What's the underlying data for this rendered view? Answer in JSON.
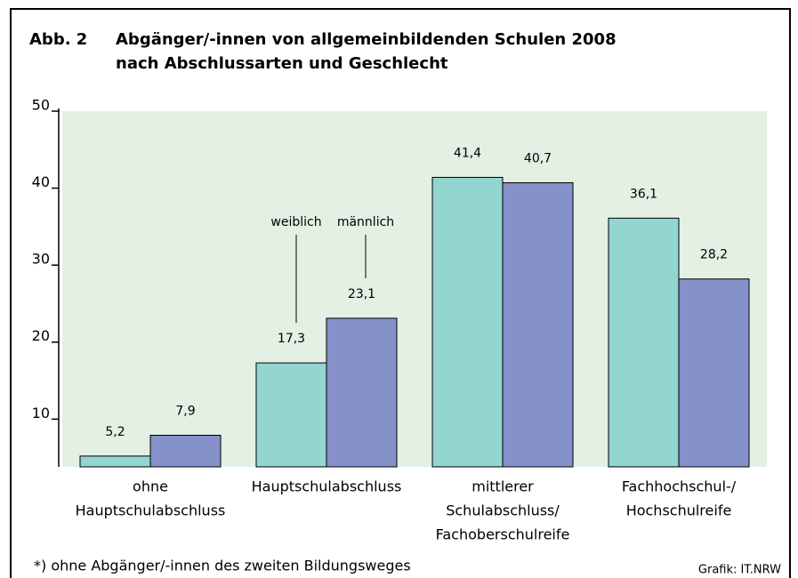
{
  "chart_data": {
    "type": "bar",
    "figure_label": "Abb. 2",
    "title": [
      "Abgänger/-innen von allgemeinbildenden Schulen 2008",
      "nach Abschlussarten und Geschlecht"
    ],
    "categories": [
      [
        "ohne",
        "Hauptschulabschluss"
      ],
      [
        "Hauptschulabschluss"
      ],
      [
        "mittlerer",
        "Schulabschluss/",
        "Fachoberschulreife"
      ],
      [
        "Fachhochschul-/",
        "Hochschulreife"
      ]
    ],
    "series": [
      {
        "name": "weiblich",
        "color": "#93d5cf",
        "values": [
          5.2,
          17.3,
          41.4,
          36.1
        ],
        "value_labels": [
          "5,2",
          "17,3",
          "41,4",
          "36,1"
        ]
      },
      {
        "name": "männlich",
        "color": "#8591c8",
        "values": [
          7.9,
          23.1,
          40.7,
          28.2
        ],
        "value_labels": [
          "7,9",
          "23,1",
          "40,7",
          "28,2"
        ]
      }
    ],
    "ylim": [
      3.8,
      50
    ],
    "yticks": [
      10,
      20,
      30,
      40,
      50
    ],
    "plot_background": "#e3f0e3",
    "footnote": "*) ohne Abgänger/-innen des zweiten Bildungsweges",
    "source": "Grafik: IT.NRW"
  }
}
